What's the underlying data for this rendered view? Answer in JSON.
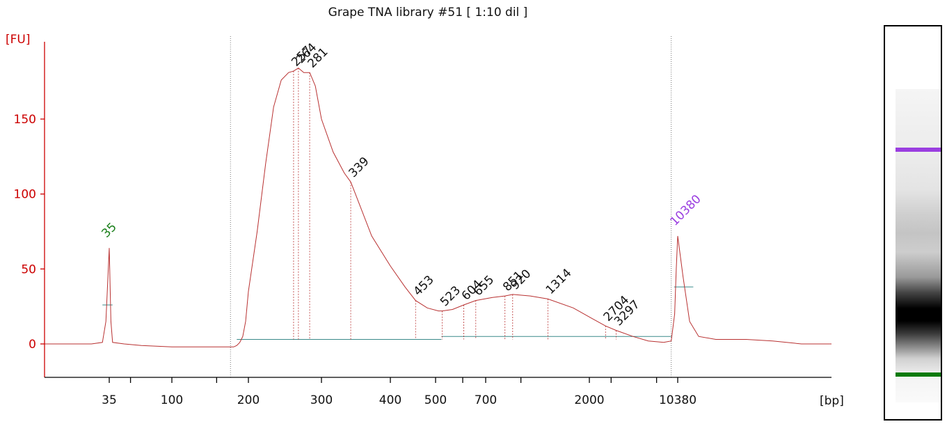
{
  "chart_data": {
    "type": "line",
    "title": "Grape TNA library #51  [ 1:10 dil ]",
    "ylabel": "[FU]",
    "xlabel": "[bp]",
    "ylim": [
      -20,
      200
    ],
    "y_ticks": [
      0,
      50,
      100,
      150
    ],
    "x_tick_labels": [
      "35",
      "100",
      "200",
      "300",
      "400",
      "500",
      "700",
      "2000",
      "10380"
    ],
    "x_ticks_bp": [
      35,
      100,
      200,
      300,
      400,
      500,
      700,
      2000,
      10380
    ],
    "x_minor_ticks_bp": [
      50,
      150,
      600,
      1000,
      3000,
      7000
    ],
    "markers": [
      {
        "label": "35",
        "bp": 35,
        "fu": 64,
        "color": "#1a7f1a"
      },
      {
        "label": "10380",
        "bp": 10380,
        "fu": 72,
        "color": "#9a3ee0"
      }
    ],
    "peaks": [
      {
        "label": "257",
        "bp": 257,
        "fu": 182
      },
      {
        "label": "264",
        "bp": 264,
        "fu": 184
      },
      {
        "label": "281",
        "bp": 281,
        "fu": 181
      },
      {
        "label": "339",
        "bp": 339,
        "fu": 108
      },
      {
        "label": "453",
        "bp": 453,
        "fu": 29
      },
      {
        "label": "523",
        "bp": 523,
        "fu": 22
      },
      {
        "label": "604",
        "bp": 604,
        "fu": 26
      },
      {
        "label": "655",
        "bp": 655,
        "fu": 29
      },
      {
        "label": "851",
        "bp": 851,
        "fu": 32
      },
      {
        "label": "920",
        "bp": 920,
        "fu": 33
      },
      {
        "label": "1314",
        "bp": 1314,
        "fu": 30
      },
      {
        "label": "2704",
        "bp": 2704,
        "fu": 12
      },
      {
        "label": "3297",
        "bp": 3297,
        "fu": 9
      }
    ],
    "trace": [
      [
        20,
        0
      ],
      [
        30,
        0
      ],
      [
        33,
        1
      ],
      [
        34,
        15
      ],
      [
        35,
        64
      ],
      [
        36,
        15
      ],
      [
        37,
        1
      ],
      [
        45,
        0
      ],
      [
        60,
        -1
      ],
      [
        100,
        -2
      ],
      [
        150,
        -2
      ],
      [
        175,
        -2
      ],
      [
        180,
        -1
      ],
      [
        185,
        1
      ],
      [
        190,
        5
      ],
      [
        195,
        15
      ],
      [
        200,
        35
      ],
      [
        210,
        75
      ],
      [
        220,
        120
      ],
      [
        230,
        158
      ],
      [
        240,
        176
      ],
      [
        250,
        181
      ],
      [
        257,
        182
      ],
      [
        264,
        184
      ],
      [
        272,
        181
      ],
      [
        281,
        181
      ],
      [
        290,
        172
      ],
      [
        300,
        150
      ],
      [
        315,
        128
      ],
      [
        330,
        114
      ],
      [
        339,
        108
      ],
      [
        350,
        95
      ],
      [
        370,
        72
      ],
      [
        400,
        52
      ],
      [
        430,
        38
      ],
      [
        453,
        29
      ],
      [
        480,
        24
      ],
      [
        510,
        22
      ],
      [
        523,
        22
      ],
      [
        560,
        23
      ],
      [
        604,
        26
      ],
      [
        655,
        29
      ],
      [
        750,
        31
      ],
      [
        851,
        32
      ],
      [
        920,
        33
      ],
      [
        1100,
        32
      ],
      [
        1314,
        30
      ],
      [
        1700,
        24
      ],
      [
        2100,
        17
      ],
      [
        2704,
        12
      ],
      [
        3297,
        9
      ],
      [
        4500,
        5
      ],
      [
        6000,
        2
      ],
      [
        8000,
        1
      ],
      [
        9200,
        2
      ],
      [
        9800,
        20
      ],
      [
        10100,
        50
      ],
      [
        10380,
        72
      ],
      [
        10650,
        45
      ],
      [
        11000,
        15
      ],
      [
        11500,
        5
      ],
      [
        12500,
        3
      ],
      [
        14500,
        3
      ],
      [
        16500,
        2
      ],
      [
        19000,
        0
      ],
      [
        22000,
        0
      ]
    ],
    "baselines": [
      {
        "from_bp": 180,
        "to_bp": 520,
        "fu": 3
      },
      {
        "from_bp": 520,
        "to_bp": 9200,
        "fu": 5
      },
      {
        "from_bp": 9700,
        "to_bp": 11200,
        "fu": 38
      },
      {
        "from_bp": 33,
        "to_bp": 37,
        "fu": 26
      }
    ],
    "region_lines_bp": [
      170,
      9200
    ],
    "legend": "none",
    "grid": false
  },
  "gel": {
    "bands": [
      {
        "name": "upper-marker",
        "color": "#9a3ee0"
      },
      {
        "name": "lower-marker",
        "color": "#0a7a0a"
      }
    ]
  },
  "colors": {
    "axis": "#cc0000",
    "trace": "#b83030",
    "baseline": "#3a8a8a",
    "label": "#111111"
  }
}
